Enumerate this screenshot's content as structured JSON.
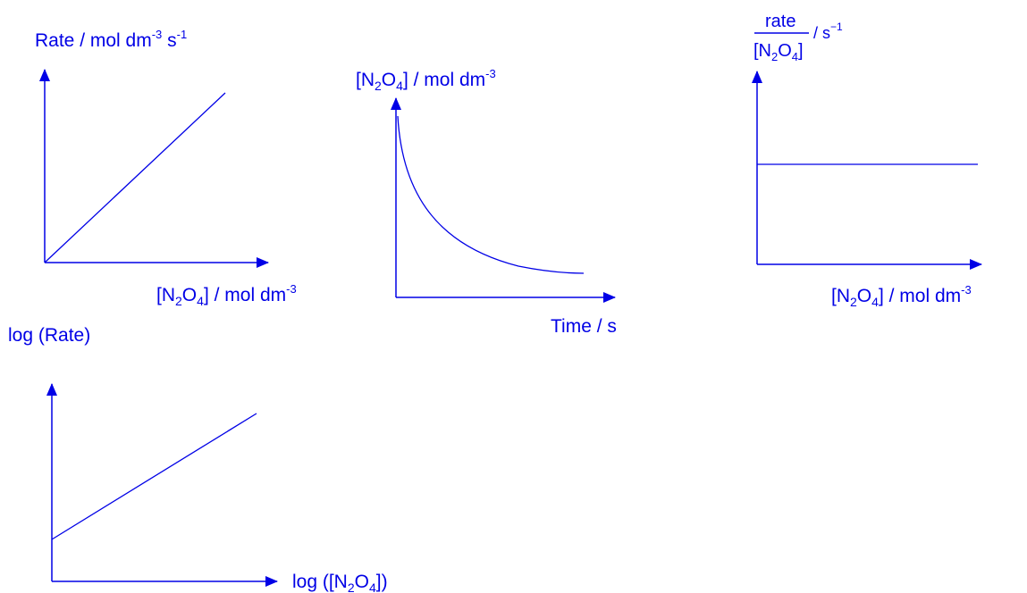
{
  "colors": {
    "ink": "#0000e6",
    "background": "#ffffff"
  },
  "labels": {
    "g1_y": {
      "main": "Rate / mol dm",
      "sup1": "-3",
      "mid": " s",
      "sup2": "-1"
    },
    "g1_x": {
      "open": "[N",
      "sub1": "2",
      "o": "O",
      "sub2": "4",
      "rest": "] / mol dm",
      "sup": "-3"
    },
    "g2_y": {
      "open": "[N",
      "sub1": "2",
      "o": "O",
      "sub2": "4",
      "rest": "] / mol dm",
      "sup": "-3"
    },
    "g2_x": "Time / s",
    "g3_y": {
      "num": "rate",
      "den_open": "[N",
      "den_sub1": "2",
      "den_o": "O",
      "den_sub2": "4",
      "den_close": "]",
      "unit": "/ s",
      "unit_sup": "−1"
    },
    "g3_x": {
      "open": "[N",
      "sub1": "2",
      "o": "O",
      "sub2": "4",
      "rest": "] / mol dm",
      "sup": "-3"
    },
    "g4_y": "log (Rate)",
    "g4_x": {
      "open": "log ([N",
      "sub1": "2",
      "o": "O",
      "sub2": "4",
      "close": "])"
    }
  },
  "chart_data": [
    {
      "type": "line",
      "shape": "linear through origin",
      "x_label": "[N2O4] / mol dm-3",
      "y_label": "Rate / mol dm-3 s-1",
      "axis_ticks": false,
      "grid": false
    },
    {
      "type": "line",
      "shape": "exponential decay",
      "x_label": "Time / s",
      "y_label": "[N2O4] / mol dm-3",
      "axis_ticks": false,
      "grid": false
    },
    {
      "type": "line",
      "shape": "horizontal constant",
      "x_label": "[N2O4] / mol dm-3",
      "y_label": "rate/[N2O4] / s-1",
      "axis_ticks": false,
      "grid": false
    },
    {
      "type": "line",
      "shape": "linear with positive intercept",
      "x_label": "log ([N2O4])",
      "y_label": "log (Rate)",
      "axis_ticks": false,
      "grid": false
    }
  ]
}
